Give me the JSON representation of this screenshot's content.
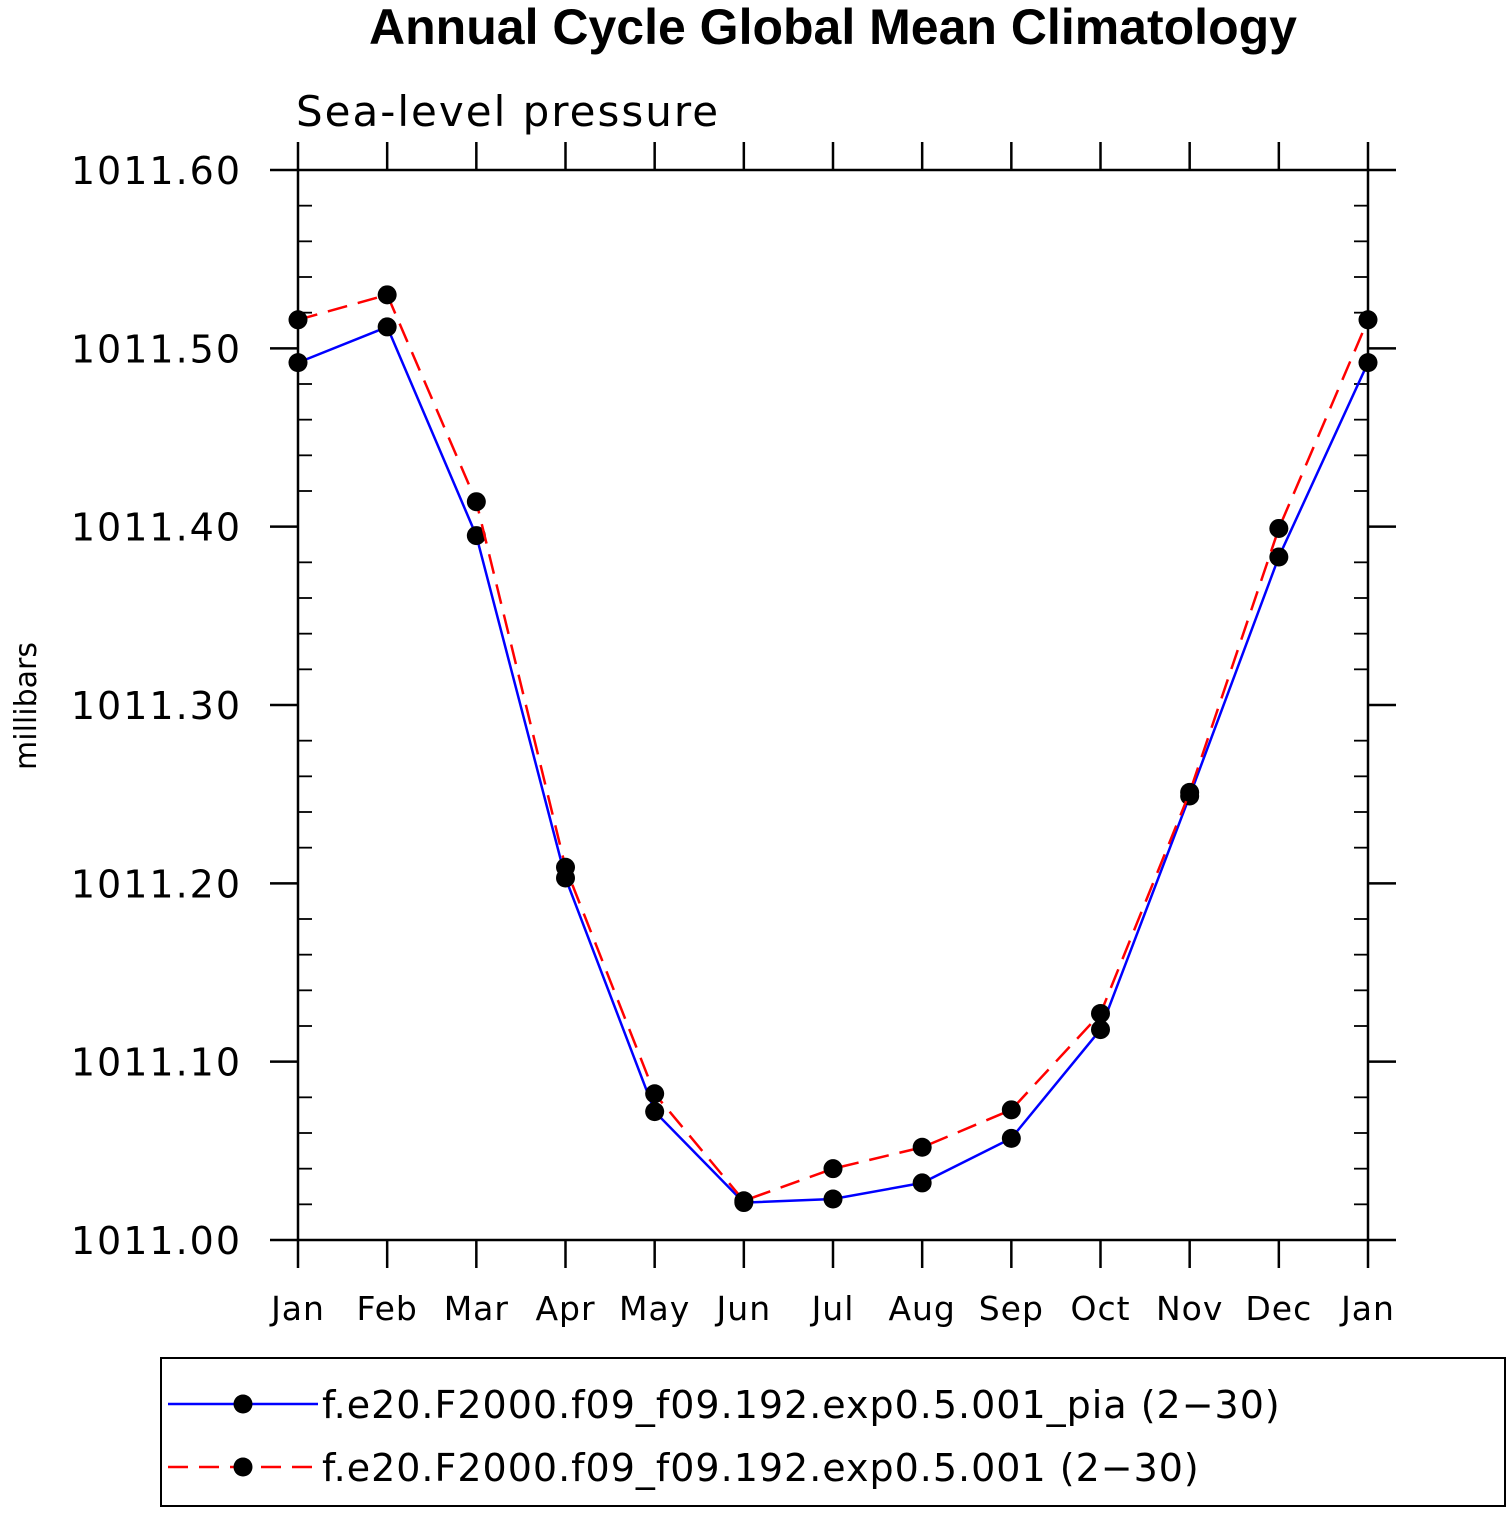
{
  "chart_data": {
    "type": "line",
    "title": "Annual Cycle Global Mean Climatology",
    "subtitle": "Sea-level pressure",
    "xlabel": "",
    "ylabel": "millibars",
    "ylim": [
      1011.0,
      1011.6
    ],
    "yticks": [
      "1011.00",
      "1011.10",
      "1011.20",
      "1011.30",
      "1011.40",
      "1011.50",
      "1011.60"
    ],
    "categories": [
      "Jan",
      "Feb",
      "Mar",
      "Apr",
      "May",
      "Jun",
      "Jul",
      "Aug",
      "Sep",
      "Oct",
      "Nov",
      "Dec",
      "Jan"
    ],
    "series": [
      {
        "name": "f.e20.F2000.f09_f09.192.exp0.5.001_pia (2−30)",
        "color": "#0000ff",
        "style": "solid",
        "marker": "circle",
        "values": [
          1011.492,
          1011.512,
          1011.395,
          1011.203,
          1011.072,
          1011.021,
          1011.023,
          1011.032,
          1011.057,
          1011.118,
          1011.249,
          1011.383,
          1011.492
        ]
      },
      {
        "name": "f.e20.F2000.f09_f09.192.exp0.5.001 (2−30)",
        "color": "#ff0000",
        "style": "dashed",
        "marker": "circle",
        "values": [
          1011.516,
          1011.53,
          1011.414,
          1011.209,
          1011.082,
          1011.022,
          1011.04,
          1011.052,
          1011.073,
          1011.127,
          1011.251,
          1011.399,
          1011.516
        ]
      }
    ],
    "legend_position": "bottom"
  }
}
